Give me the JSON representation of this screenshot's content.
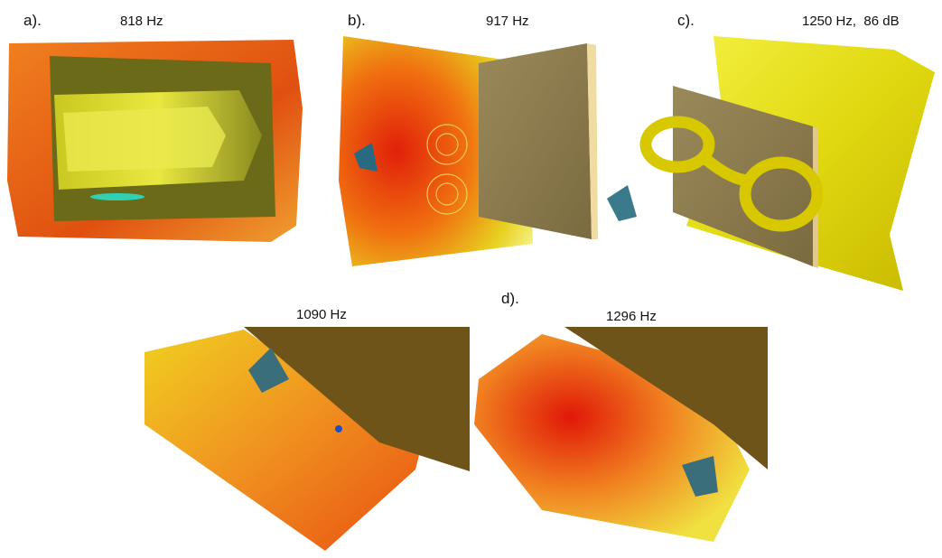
{
  "panels": [
    {
      "label": "a).",
      "caption": "818 Hz"
    },
    {
      "label": "b).",
      "caption": "917 Hz"
    },
    {
      "label": "c).",
      "caption": "1250 Hz,  86 dB"
    },
    {
      "label": "d).",
      "captions": [
        "1090 Hz",
        "1296 Hz"
      ]
    }
  ]
}
